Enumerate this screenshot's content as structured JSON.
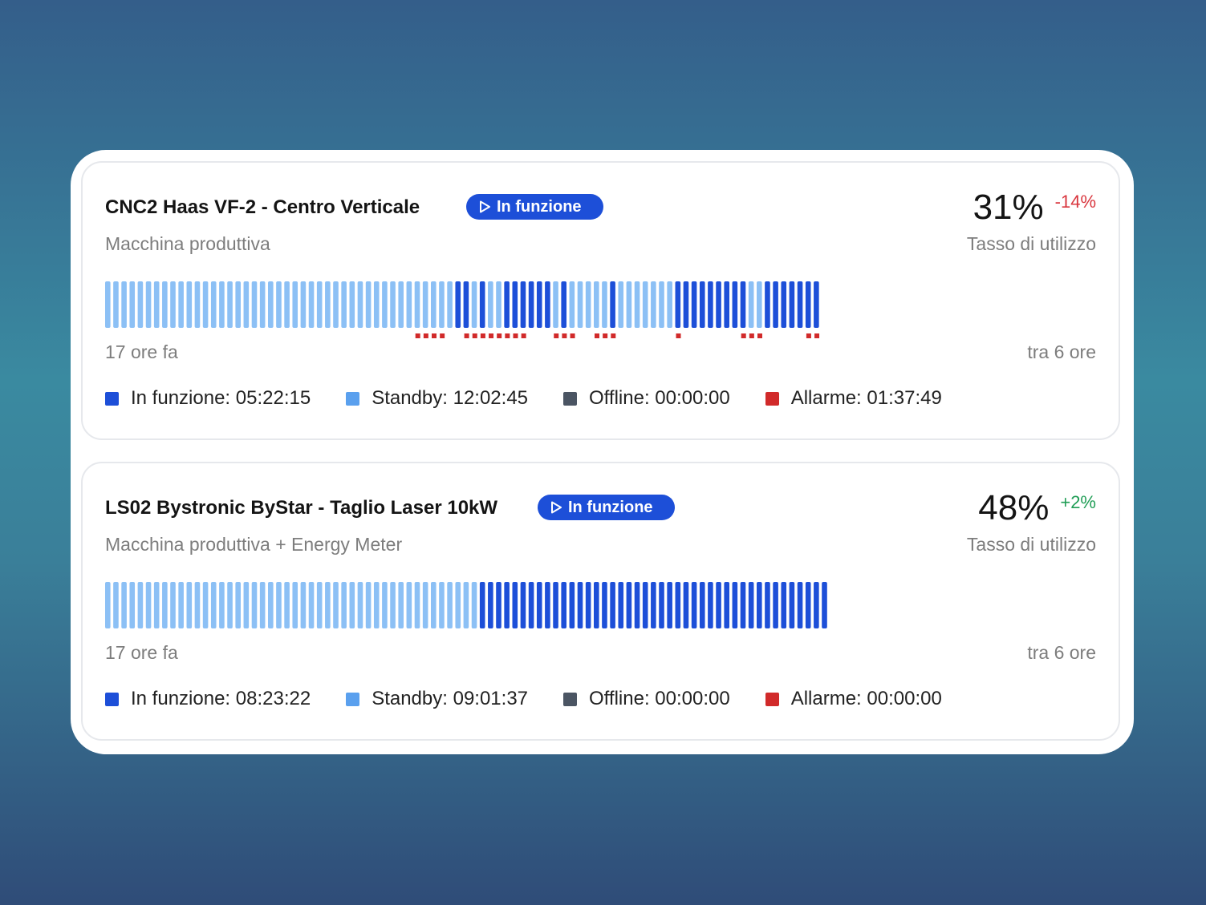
{
  "colors": {
    "running": "#1d4fd8",
    "standby": "#8cc0f5",
    "legend_standby": "#5aa0ee",
    "offline": "#4b5563",
    "alarm": "#d12a2a"
  },
  "machines": [
    {
      "name": "CNC2 Haas VF-2 - Centro Verticale",
      "status": "In funzione",
      "type": "Macchina produttiva",
      "utilization": "31%",
      "delta": "-14%",
      "metric_label": "Tasso di utilizzo",
      "time_start": "17 ore fa",
      "time_end": "tra 6 ore",
      "timeline": [
        "S",
        "S",
        "S",
        "S",
        "S",
        "S",
        "S",
        "S",
        "S",
        "S",
        "S",
        "S",
        "S",
        "S",
        "S",
        "S",
        "S",
        "S",
        "S",
        "S",
        "S",
        "S",
        "S",
        "S",
        "S",
        "S",
        "S",
        "S",
        "S",
        "S",
        "S",
        "S",
        "S",
        "S",
        "S",
        "S",
        "S",
        "S",
        "S",
        "S",
        "S",
        "S",
        "S",
        "R",
        "R",
        "S",
        "R",
        "S",
        "S",
        "R",
        "R",
        "R",
        "R",
        "R",
        "R",
        "S",
        "R",
        "S",
        "S",
        "S",
        "S",
        "S",
        "R",
        "S",
        "S",
        "S",
        "S",
        "S",
        "S",
        "S",
        "R",
        "R",
        "R",
        "R",
        "R",
        "R",
        "R",
        "R",
        "R",
        "S",
        "S",
        "R",
        "R",
        "R",
        "R",
        "R",
        "R",
        "R"
      ],
      "alarm_marks": [
        38,
        39,
        40,
        41,
        44,
        45,
        46,
        47,
        48,
        49,
        50,
        51,
        55,
        56,
        57,
        60,
        61,
        62,
        70,
        78,
        79,
        80,
        86,
        87
      ],
      "legend": [
        {
          "label": "In funzione: 05:22:15",
          "color": "#1d4fd8"
        },
        {
          "label": "Standby: 12:02:45",
          "color": "#5aa0ee"
        },
        {
          "label": "Offline: 00:00:00",
          "color": "#4b5563"
        },
        {
          "label": "Allarme: 01:37:49",
          "color": "#d12a2a"
        }
      ]
    },
    {
      "name": "LS02 Bystronic ByStar - Taglio Laser 10kW",
      "status": "In funzione",
      "type": "Macchina produttiva + Energy Meter",
      "utilization": "48%",
      "delta": "+2%",
      "metric_label": "Tasso di utilizzo",
      "time_start": "17 ore fa",
      "time_end": "tra 6 ore",
      "timeline": [
        "S",
        "S",
        "S",
        "S",
        "S",
        "S",
        "S",
        "S",
        "S",
        "S",
        "S",
        "S",
        "S",
        "S",
        "S",
        "S",
        "S",
        "S",
        "S",
        "S",
        "S",
        "S",
        "S",
        "S",
        "S",
        "S",
        "S",
        "S",
        "S",
        "S",
        "S",
        "S",
        "S",
        "S",
        "S",
        "S",
        "S",
        "S",
        "S",
        "S",
        "S",
        "S",
        "S",
        "S",
        "S",
        "S",
        "R",
        "R",
        "R",
        "R",
        "R",
        "R",
        "R",
        "R",
        "R",
        "R",
        "R",
        "R",
        "R",
        "R",
        "R",
        "R",
        "R",
        "R",
        "R",
        "R",
        "R",
        "R",
        "R",
        "R",
        "R",
        "R",
        "R",
        "R",
        "R",
        "R",
        "R",
        "R",
        "R",
        "R",
        "R",
        "R",
        "R",
        "R",
        "R",
        "R",
        "R",
        "R",
        "R"
      ],
      "alarm_marks": [],
      "legend": [
        {
          "label": "In funzione: 08:23:22",
          "color": "#1d4fd8"
        },
        {
          "label": "Standby: 09:01:37",
          "color": "#5aa0ee"
        },
        {
          "label": "Offline: 00:00:00",
          "color": "#4b5563"
        },
        {
          "label": "Allarme: 00:00:00",
          "color": "#d12a2a"
        }
      ]
    }
  ]
}
